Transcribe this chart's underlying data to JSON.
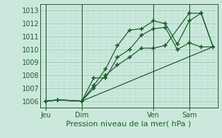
{
  "title": "Pression niveau de la mer( hPa )",
  "background_color": "#cce8dc",
  "grid_color_major": "#99ccbb",
  "grid_color_minor": "#b8ddd0",
  "line_color": "#1a5e28",
  "ylim": [
    1005.5,
    1013.5
  ],
  "yticks": [
    1006,
    1007,
    1008,
    1009,
    1010,
    1011,
    1012,
    1013
  ],
  "xtick_labels": [
    "Jeu",
    "Dim",
    "Ven",
    "Sam"
  ],
  "xtick_positions": [
    0,
    24,
    72,
    96
  ],
  "xlim": [
    -4,
    115
  ],
  "series1_x": [
    0,
    8,
    24,
    32,
    40,
    48,
    56,
    64,
    72,
    80,
    88,
    96,
    104,
    112
  ],
  "series1_y": [
    1006.0,
    1006.1,
    1006.0,
    1007.8,
    1007.8,
    1009.4,
    1010.0,
    1011.1,
    1011.6,
    1011.7,
    1010.0,
    1010.5,
    1010.2,
    1010.2
  ],
  "series2_x": [
    0,
    8,
    24,
    32,
    40,
    48,
    56,
    64,
    72,
    80,
    88,
    96,
    104,
    112
  ],
  "series2_y": [
    1006.0,
    1006.1,
    1006.0,
    1007.2,
    1008.5,
    1010.3,
    1011.5,
    1011.6,
    1012.2,
    1012.0,
    1010.4,
    1012.2,
    1012.8,
    1010.2
  ],
  "series3_x": [
    0,
    8,
    24,
    32,
    40,
    48,
    56,
    64,
    72,
    80,
    96,
    104,
    112
  ],
  "series3_y": [
    1006.0,
    1006.1,
    1006.0,
    1007.0,
    1008.0,
    1008.8,
    1009.4,
    1010.1,
    1010.1,
    1010.3,
    1012.8,
    1012.8,
    1010.2
  ],
  "series4_x": [
    0,
    8,
    24,
    112
  ],
  "series4_y": [
    1006.0,
    1006.1,
    1006.0,
    1010.2
  ],
  "vline_positions": [
    0,
    24,
    72,
    96
  ]
}
